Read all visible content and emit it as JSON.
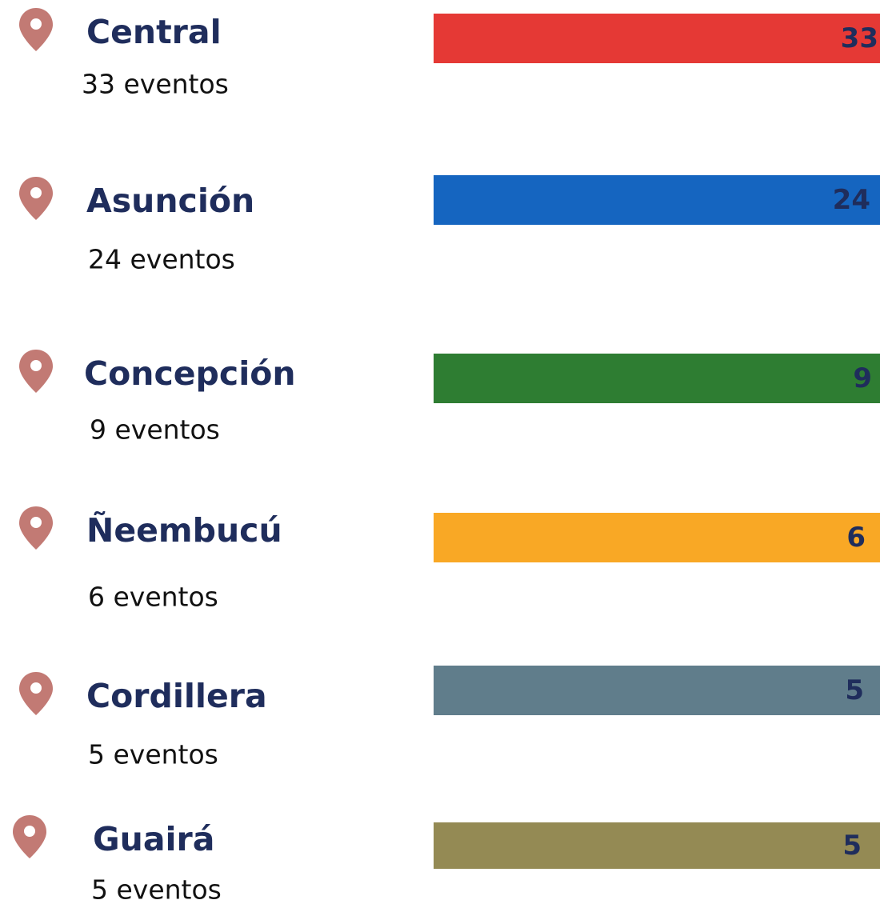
{
  "items": [
    {
      "name": "Central",
      "count": "33 eventos",
      "bar_label": "33",
      "color": "#e53935"
    },
    {
      "name": "Asunción",
      "count": "24 eventos",
      "bar_label": "24",
      "color": "#1565c0"
    },
    {
      "name": "Concepción",
      "count": "9 eventos",
      "bar_label": "9",
      "color": "#2e7d32"
    },
    {
      "name": "Ñeembucú",
      "count": "6 eventos",
      "bar_label": "6",
      "color": "#f9a825"
    },
    {
      "name": "Cordillera",
      "count": "5 eventos",
      "bar_label": "5",
      "color": "#607d8b"
    },
    {
      "name": "Guairá",
      "count": "5 eventos",
      "bar_label": "5",
      "color": "#948a54"
    }
  ]
}
